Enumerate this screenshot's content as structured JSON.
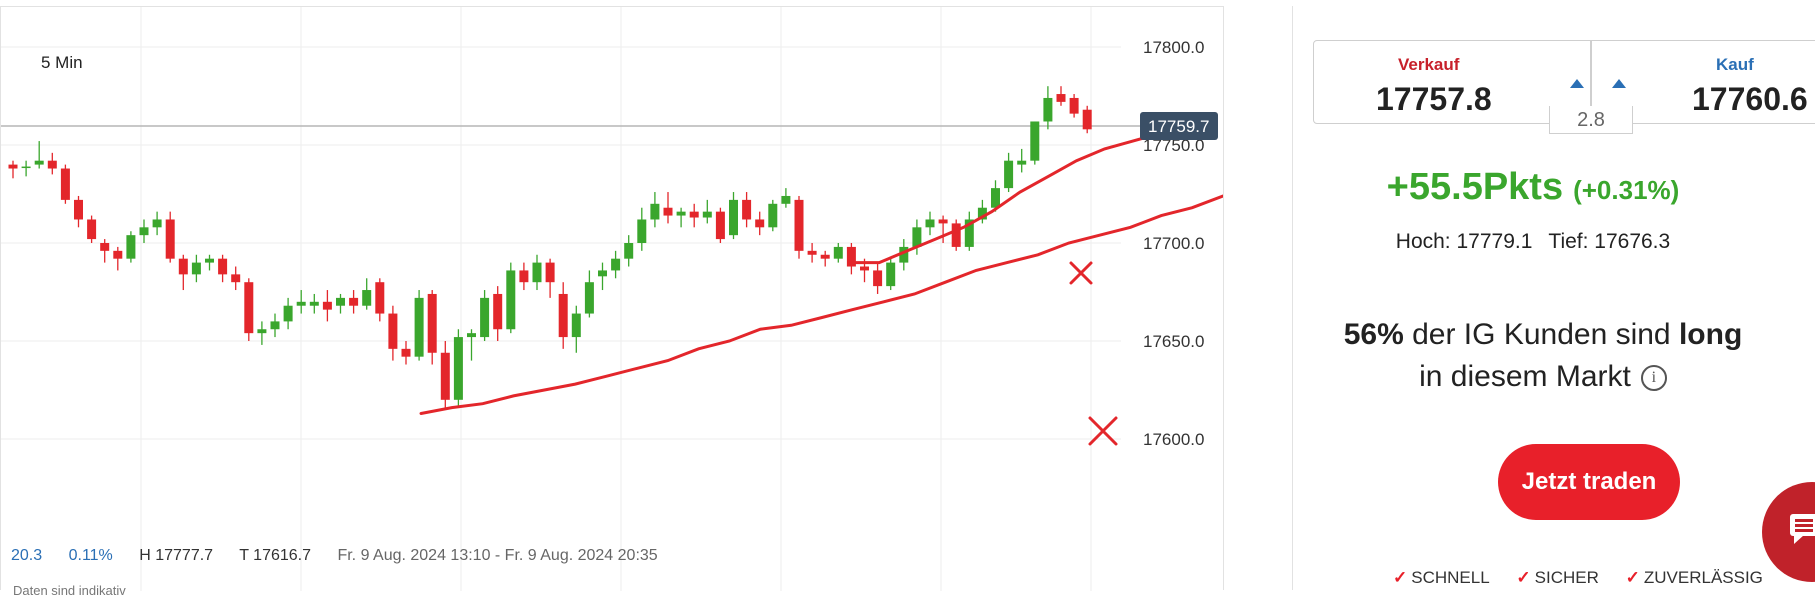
{
  "chart": {
    "timeframe": "5 Min",
    "current_price_label": "17759.7",
    "stats": {
      "change": "20.3",
      "change_pct": "0.11%",
      "high": "H 17777.7",
      "low": "T 17616.7",
      "range": "Fr. 9 Aug. 2024 13:10 - Fr. 9 Aug. 2024 20:35"
    },
    "disclaimer": "Daten sind indikativ"
  },
  "chart_data": {
    "type": "candlestick",
    "y_ticks": [
      "17800.0",
      "17750.0",
      "17700.0",
      "17650.0",
      "17600.0"
    ],
    "y_tick_values": [
      17800,
      17750,
      17700,
      17650,
      17600
    ],
    "current_price": 17759.7,
    "candles": [
      [
        17740,
        17742,
        17733,
        17738
      ],
      [
        17739,
        17742,
        17734,
        17739
      ],
      [
        17740,
        17752,
        17738,
        17742
      ],
      [
        17742,
        17746,
        17735,
        17738
      ],
      [
        17738,
        17740,
        17720,
        17722
      ],
      [
        17722,
        17724,
        17708,
        17712
      ],
      [
        17712,
        17714,
        17700,
        17702
      ],
      [
        17700,
        17702,
        17690,
        17696
      ],
      [
        17696,
        17698,
        17686,
        17692
      ],
      [
        17692,
        17706,
        17690,
        17704
      ],
      [
        17704,
        17712,
        17700,
        17708
      ],
      [
        17708,
        17716,
        17704,
        17712
      ],
      [
        17712,
        17716,
        17690,
        17692
      ],
      [
        17692,
        17694,
        17676,
        17684
      ],
      [
        17684,
        17694,
        17680,
        17690
      ],
      [
        17690,
        17694,
        17686,
        17692
      ],
      [
        17692,
        17694,
        17680,
        17684
      ],
      [
        17684,
        17688,
        17676,
        17680
      ],
      [
        17680,
        17682,
        17650,
        17654
      ],
      [
        17654,
        17660,
        17648,
        17656
      ],
      [
        17656,
        17664,
        17652,
        17660
      ],
      [
        17660,
        17672,
        17656,
        17668
      ],
      [
        17668,
        17676,
        17664,
        17670
      ],
      [
        17668,
        17674,
        17664,
        17670
      ],
      [
        17670,
        17676,
        17660,
        17666
      ],
      [
        17668,
        17674,
        17664,
        17672
      ],
      [
        17672,
        17676,
        17664,
        17668
      ],
      [
        17668,
        17682,
        17666,
        17676
      ],
      [
        17680,
        17682,
        17660,
        17664
      ],
      [
        17664,
        17668,
        17640,
        17646
      ],
      [
        17646,
        17650,
        17638,
        17642
      ],
      [
        17642,
        17676,
        17640,
        17672
      ],
      [
        17674,
        17676,
        17638,
        17644
      ],
      [
        17644,
        17650,
        17616,
        17620
      ],
      [
        17620,
        17656,
        17616,
        17652
      ],
      [
        17652,
        17656,
        17640,
        17654
      ],
      [
        17652,
        17676,
        17650,
        17672
      ],
      [
        17674,
        17678,
        17650,
        17656
      ],
      [
        17656,
        17690,
        17654,
        17686
      ],
      [
        17686,
        17690,
        17676,
        17680
      ],
      [
        17680,
        17694,
        17676,
        17690
      ],
      [
        17690,
        17692,
        17672,
        17680
      ],
      [
        17674,
        17680,
        17646,
        17652
      ],
      [
        17652,
        17668,
        17644,
        17664
      ],
      [
        17664,
        17686,
        17662,
        17680
      ],
      [
        17683,
        17690,
        17676,
        17686
      ],
      [
        17686,
        17696,
        17682,
        17692
      ],
      [
        17692,
        17704,
        17688,
        17700
      ],
      [
        17700,
        17718,
        17696,
        17712
      ],
      [
        17712,
        17726,
        17708,
        17720
      ],
      [
        17718,
        17726,
        17710,
        17714
      ],
      [
        17714,
        17718,
        17708,
        17716
      ],
      [
        17716,
        17720,
        17708,
        17713
      ],
      [
        17713,
        17722,
        17710,
        17716
      ],
      [
        17716,
        17718,
        17700,
        17702
      ],
      [
        17704,
        17726,
        17702,
        17722
      ],
      [
        17722,
        17726,
        17708,
        17712
      ],
      [
        17712,
        17716,
        17704,
        17708
      ],
      [
        17708,
        17722,
        17706,
        17720
      ],
      [
        17720,
        17728,
        17718,
        17724
      ],
      [
        17722,
        17724,
        17692,
        17696
      ],
      [
        17696,
        17700,
        17690,
        17694
      ],
      [
        17694,
        17696,
        17688,
        17692
      ],
      [
        17692,
        17700,
        17690,
        17698
      ],
      [
        17698,
        17700,
        17684,
        17688
      ],
      [
        17688,
        17692,
        17680,
        17686
      ],
      [
        17686,
        17690,
        17674,
        17678
      ],
      [
        17678,
        17692,
        17676,
        17690
      ],
      [
        17690,
        17702,
        17686,
        17698
      ],
      [
        17698,
        17712,
        17694,
        17708
      ],
      [
        17708,
        17716,
        17704,
        17712
      ],
      [
        17712,
        17714,
        17700,
        17710
      ],
      [
        17710,
        17712,
        17696,
        17698
      ],
      [
        17698,
        17716,
        17696,
        17712
      ],
      [
        17712,
        17722,
        17710,
        17718
      ],
      [
        17718,
        17732,
        17716,
        17728
      ],
      [
        17728,
        17746,
        17726,
        17742
      ],
      [
        17740,
        17748,
        17736,
        17742
      ],
      [
        17742,
        17762,
        17740,
        17762
      ],
      [
        17762,
        17780,
        17758,
        17774
      ],
      [
        17776,
        17780,
        17770,
        17772
      ],
      [
        17774,
        17776,
        17764,
        17766
      ],
      [
        17768,
        17770,
        17756,
        17758
      ]
    ],
    "overlays": {
      "line_fast": [
        [
          17690,
          180
        ],
        [
          17690,
          182
        ],
        [
          17696,
          186
        ],
        [
          17702,
          190
        ],
        [
          17708,
          194
        ],
        [
          17716,
          198
        ],
        [
          17726,
          202
        ],
        [
          17734,
          206
        ],
        [
          17742,
          210
        ],
        [
          17748,
          214
        ],
        [
          17752,
          218
        ],
        [
          17756,
          222
        ]
      ],
      "line_slow": [
        [
          17613,
          117
        ],
        [
          17616,
          122
        ],
        [
          17618,
          128
        ],
        [
          17622,
          134
        ],
        [
          17625,
          140
        ],
        [
          17628,
          146
        ],
        [
          17632,
          152
        ],
        [
          17636,
          158
        ],
        [
          17640,
          162
        ],
        [
          17646,
          166
        ],
        [
          17650,
          170
        ],
        [
          17656,
          174
        ],
        [
          17658,
          178
        ],
        [
          17662,
          182
        ],
        [
          17666,
          186
        ],
        [
          17670,
          190
        ],
        [
          17674,
          194
        ],
        [
          17680,
          198
        ],
        [
          17686,
          202
        ],
        [
          17690,
          206
        ],
        [
          17694,
          210
        ],
        [
          17700,
          214
        ],
        [
          17704,
          218
        ],
        [
          17708,
          222
        ],
        [
          17714,
          226
        ],
        [
          17718,
          230
        ],
        [
          17724,
          234
        ]
      ]
    },
    "handdrawn_marks": [
      "x-mark",
      "x-mark"
    ],
    "colors": {
      "up": "#3aa62d",
      "down": "#e3262b",
      "overlay": "#e3262b",
      "price_tag_bg": "#3a4f66"
    }
  },
  "sidebar": {
    "sell_label": "Verkauf",
    "sell_price": "17757.8",
    "buy_label": "Kauf",
    "buy_price": "17760.6",
    "spread": "2.8",
    "change_points": "+55.5Pkts",
    "change_percent": "(+0.31%)",
    "high": "Hoch: 17779.1",
    "low": "Tief: 17676.3",
    "sentiment_percent": "56%",
    "sentiment_text": " der IG Kunden sind ",
    "sentiment_direction": "long",
    "sentiment_line2": "in diesem Markt",
    "info_icon": "i",
    "trade_button": "Jetzt traden",
    "features": [
      "SCHNELL",
      "SICHER",
      "ZUVERLÄSSIG"
    ],
    "check_icon": "✓"
  }
}
